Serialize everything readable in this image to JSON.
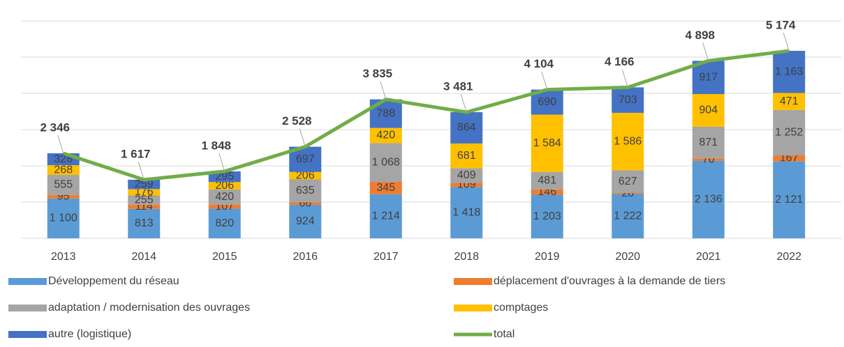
{
  "chart_data": {
    "type": "stacked-bar-line",
    "categories": [
      "2013",
      "2014",
      "2015",
      "2016",
      "2017",
      "2018",
      "2019",
      "2020",
      "2021",
      "2022"
    ],
    "ylim": [
      0,
      6000
    ],
    "yticks": [
      0,
      1000,
      2000,
      3000,
      4000,
      5000,
      6000
    ],
    "grid": true,
    "series": [
      {
        "name": "Développement du réseau",
        "color": "#5b9bd5",
        "values": [
          1100,
          813,
          820,
          924,
          1214,
          1418,
          1203,
          1222,
          2136,
          2121
        ],
        "value_labels": [
          "1 100",
          "813",
          "820",
          "924",
          "1 214",
          "1 418",
          "1 203",
          "1 222",
          "2 136",
          "2 121"
        ]
      },
      {
        "name": "déplacement d'ouvrages à la demande de tiers",
        "color": "#ed7d31",
        "values": [
          95,
          114,
          107,
          66,
          345,
          109,
          146,
          28,
          70,
          167
        ]
      },
      {
        "name": "adaptation / modernisation des ouvrages",
        "color": "#a5a5a5",
        "values": [
          555,
          255,
          420,
          635,
          1068,
          409,
          481,
          627,
          871,
          1252
        ],
        "value_labels": [
          "555",
          "255",
          "420",
          "635",
          "1 068",
          "409",
          "481",
          "627",
          "871",
          "1 252"
        ]
      },
      {
        "name": "comptages",
        "color": "#ffc000",
        "values": [
          268,
          176,
          206,
          206,
          420,
          681,
          1584,
          1586,
          904,
          471
        ],
        "value_labels": [
          "268",
          "176",
          "206",
          "206",
          "420",
          "681",
          "1 584",
          "1 586",
          "904",
          "471"
        ]
      },
      {
        "name": "autre (logistique)",
        "color": "#4472c4",
        "values": [
          328,
          259,
          295,
          697,
          788,
          864,
          690,
          703,
          917,
          1163
        ],
        "value_labels": [
          "328",
          "259",
          "295",
          "697",
          "788",
          "864",
          "690",
          "703",
          "917",
          "1 163"
        ]
      }
    ],
    "total": {
      "name": "total",
      "color": "#70ad47",
      "values": [
        2346,
        1617,
        1848,
        2528,
        3835,
        3481,
        4104,
        4166,
        4898,
        5174
      ],
      "value_labels": [
        "2 346",
        "1 617",
        "1 848",
        "2 528",
        "3 835",
        "3 481",
        "4 104",
        "4 166",
        "4 898",
        "5 174"
      ]
    }
  }
}
